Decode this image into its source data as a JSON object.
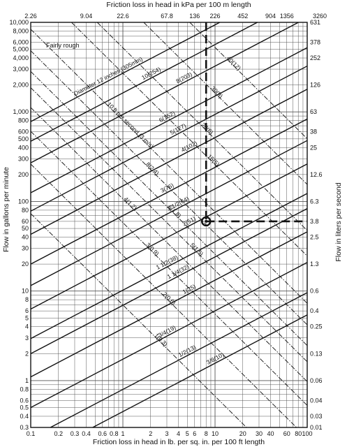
{
  "chart_data": {
    "type": "line",
    "title": "",
    "note": "Fairly rough",
    "xlabel": "Friction loss in head in lb. per sq. in. per 100 ft length",
    "x2label": "Friction loss in head in kPa per 100 m length",
    "ylabel": "Flow in gallons per minute",
    "y2label": "Flow in liters per second",
    "xscale": "log",
    "yscale": "log",
    "xlim": [
      0.1,
      100
    ],
    "ylim": [
      0.3,
      10000
    ],
    "grid": true,
    "x_ticks": [
      {
        "v": 0.1,
        "t": "0.1"
      },
      {
        "v": 0.2,
        "t": "0.2"
      },
      {
        "v": 0.3,
        "t": "0.3"
      },
      {
        "v": 0.4,
        "t": "0.4"
      },
      {
        "v": 0.6,
        "t": "0.6"
      },
      {
        "v": 0.8,
        "t": "0.8"
      },
      {
        "v": 1,
        "t": "1"
      },
      {
        "v": 2,
        "t": "2"
      },
      {
        "v": 3,
        "t": "3"
      },
      {
        "v": 4,
        "t": "4"
      },
      {
        "v": 5,
        "t": "5"
      },
      {
        "v": 6,
        "t": "6"
      },
      {
        "v": 8,
        "t": "8"
      },
      {
        "v": 10,
        "t": "10"
      },
      {
        "v": 20,
        "t": "20"
      },
      {
        "v": 30,
        "t": "30"
      },
      {
        "v": 40,
        "t": "40"
      },
      {
        "v": 60,
        "t": "60"
      },
      {
        "v": 80,
        "t": "80"
      },
      {
        "v": 100,
        "t": "100"
      }
    ],
    "x2_ticks": [
      {
        "v": 0.1,
        "t": "2.26"
      },
      {
        "v": 0.4,
        "t": "9.04"
      },
      {
        "v": 1,
        "t": "22.6"
      },
      {
        "v": 3,
        "t": "67.8"
      },
      {
        "v": 6,
        "t": "136"
      },
      {
        "v": 10,
        "t": "226"
      },
      {
        "v": 20,
        "t": "452"
      },
      {
        "v": 40,
        "t": "904"
      },
      {
        "v": 60,
        "t": "1356"
      },
      {
        "v": 144,
        "t": "3260"
      }
    ],
    "y_ticks": [
      {
        "v": 10000,
        "t": "10,000"
      },
      {
        "v": 8000,
        "t": "8,000"
      },
      {
        "v": 6000,
        "t": "6,000"
      },
      {
        "v": 5000,
        "t": "5,000"
      },
      {
        "v": 4000,
        "t": "4,000"
      },
      {
        "v": 3000,
        "t": "3,000"
      },
      {
        "v": 2000,
        "t": "2,000"
      },
      {
        "v": 1000,
        "t": "1,000"
      },
      {
        "v": 800,
        "t": "800"
      },
      {
        "v": 600,
        "t": "600"
      },
      {
        "v": 500,
        "t": "500"
      },
      {
        "v": 400,
        "t": "400"
      },
      {
        "v": 300,
        "t": "300"
      },
      {
        "v": 200,
        "t": "200"
      },
      {
        "v": 100,
        "t": "100"
      },
      {
        "v": 80,
        "t": "80"
      },
      {
        "v": 60,
        "t": "60"
      },
      {
        "v": 50,
        "t": "50"
      },
      {
        "v": 40,
        "t": "40"
      },
      {
        "v": 30,
        "t": "30"
      },
      {
        "v": 20,
        "t": "20"
      },
      {
        "v": 10,
        "t": "10"
      },
      {
        "v": 8,
        "t": "8"
      },
      {
        "v": 6,
        "t": "6"
      },
      {
        "v": 5,
        "t": "5"
      },
      {
        "v": 4,
        "t": "4"
      },
      {
        "v": 3,
        "t": "3"
      },
      {
        "v": 2,
        "t": "2"
      },
      {
        "v": 1,
        "t": "1"
      },
      {
        "v": 0.8,
        "t": "0.8"
      },
      {
        "v": 0.6,
        "t": "0.6"
      },
      {
        "v": 0.5,
        "t": "0.5"
      },
      {
        "v": 0.4,
        "t": "0.4"
      },
      {
        "v": 0.3,
        "t": "0.3"
      }
    ],
    "y2_ticks": [
      {
        "v": 10000,
        "t": "631"
      },
      {
        "v": 6000,
        "t": "378"
      },
      {
        "v": 4000,
        "t": "252"
      },
      {
        "v": 2000,
        "t": "126"
      },
      {
        "v": 1000,
        "t": "63"
      },
      {
        "v": 600,
        "t": "38"
      },
      {
        "v": 400,
        "t": "25"
      },
      {
        "v": 200,
        "t": "12.6"
      },
      {
        "v": 100,
        "t": "6.3"
      },
      {
        "v": 60,
        "t": "3.8"
      },
      {
        "v": 40,
        "t": "2.5"
      },
      {
        "v": 20,
        "t": "1.3"
      },
      {
        "v": 10,
        "t": "0.6"
      },
      {
        "v": 6,
        "t": "0.4"
      },
      {
        "v": 4,
        "t": "0.25"
      },
      {
        "v": 2,
        "t": "0.13"
      },
      {
        "v": 1,
        "t": "0.06"
      },
      {
        "v": 0.6,
        "t": "0.04"
      },
      {
        "v": 0.4,
        "t": "0.03"
      },
      {
        "v": 0.2,
        "t": "0.01"
      }
    ],
    "pipe_lines": [
      {
        "label": "Diameter 12 inches (305mm)",
        "x0": 0.1,
        "y0": 780
      },
      {
        "label": "10(254)",
        "x0": 0.1,
        "y0": 470
      },
      {
        "label": "8(203)",
        "x0": 0.1,
        "y0": 270
      },
      {
        "label": "6(152)",
        "x0": 0.1,
        "y0": 125
      },
      {
        "label": "5(127)",
        "x0": 0.1,
        "y0": 78
      },
      {
        "label": "4(102)",
        "x0": 0.1,
        "y0": 43
      },
      {
        "label": "3(76)",
        "x0": 0.1,
        "y0": 20
      },
      {
        "label": "2 1/2(64)",
        "x0": 0.1,
        "y0": 11.5
      },
      {
        "label": "2(51)",
        "x0": 0.1,
        "y0": 6.3
      },
      {
        "label": "1 1/2(38)",
        "x0": 0.1,
        "y0": 2.95
      },
      {
        "label": "1 1/4(32)",
        "x0": 0.1,
        "y0": 2.0
      },
      {
        "label": "1(25)",
        "x0": 0.1,
        "y0": 1.1
      },
      {
        "label": "3/4(19)",
        "x0": 0.1,
        "y0": 0.5
      },
      {
        "label": "1/2(13)",
        "x0": 0.1,
        "y0": 0.23
      },
      {
        "label": "3/8(10)",
        "x0": 0.1,
        "y0": 0.13
      }
    ],
    "pipe_slope": 0.54,
    "velocity_lines": [
      {
        "label": "40(12)",
        "x0": 1,
        "y0": 55000
      },
      {
        "label": "30(9)",
        "x0": 1,
        "y0": 17000
      },
      {
        "label": "20(6)",
        "x0": 1,
        "y0": 5200
      },
      {
        "label": "15(5)",
        "x0": 1,
        "y0": 2700
      },
      {
        "label": "10 ft per second (3 m/s)",
        "x0": 1,
        "y0": 800
      },
      {
        "label": "8(2.4)",
        "x0": 1,
        "y0": 460
      },
      {
        "label": "6(1.8)",
        "x0": 1,
        "y0": 270
      },
      {
        "label": "5(1.5)",
        "x0": 1,
        "y0": 178
      },
      {
        "label": "4(1.2)",
        "x0": 1,
        "y0": 107
      },
      {
        "label": "3(0.9)",
        "x0": 1,
        "y0": 58
      },
      {
        "label": "2(0.6)",
        "x0": 1,
        "y0": 25
      },
      {
        "label": "1(0.3)",
        "x0": 1,
        "y0": 7
      }
    ],
    "velocity_slope": -1.02,
    "example": {
      "x": 8,
      "y": 60,
      "label": "Velocity 10 ft per second (3 m/s)"
    }
  }
}
